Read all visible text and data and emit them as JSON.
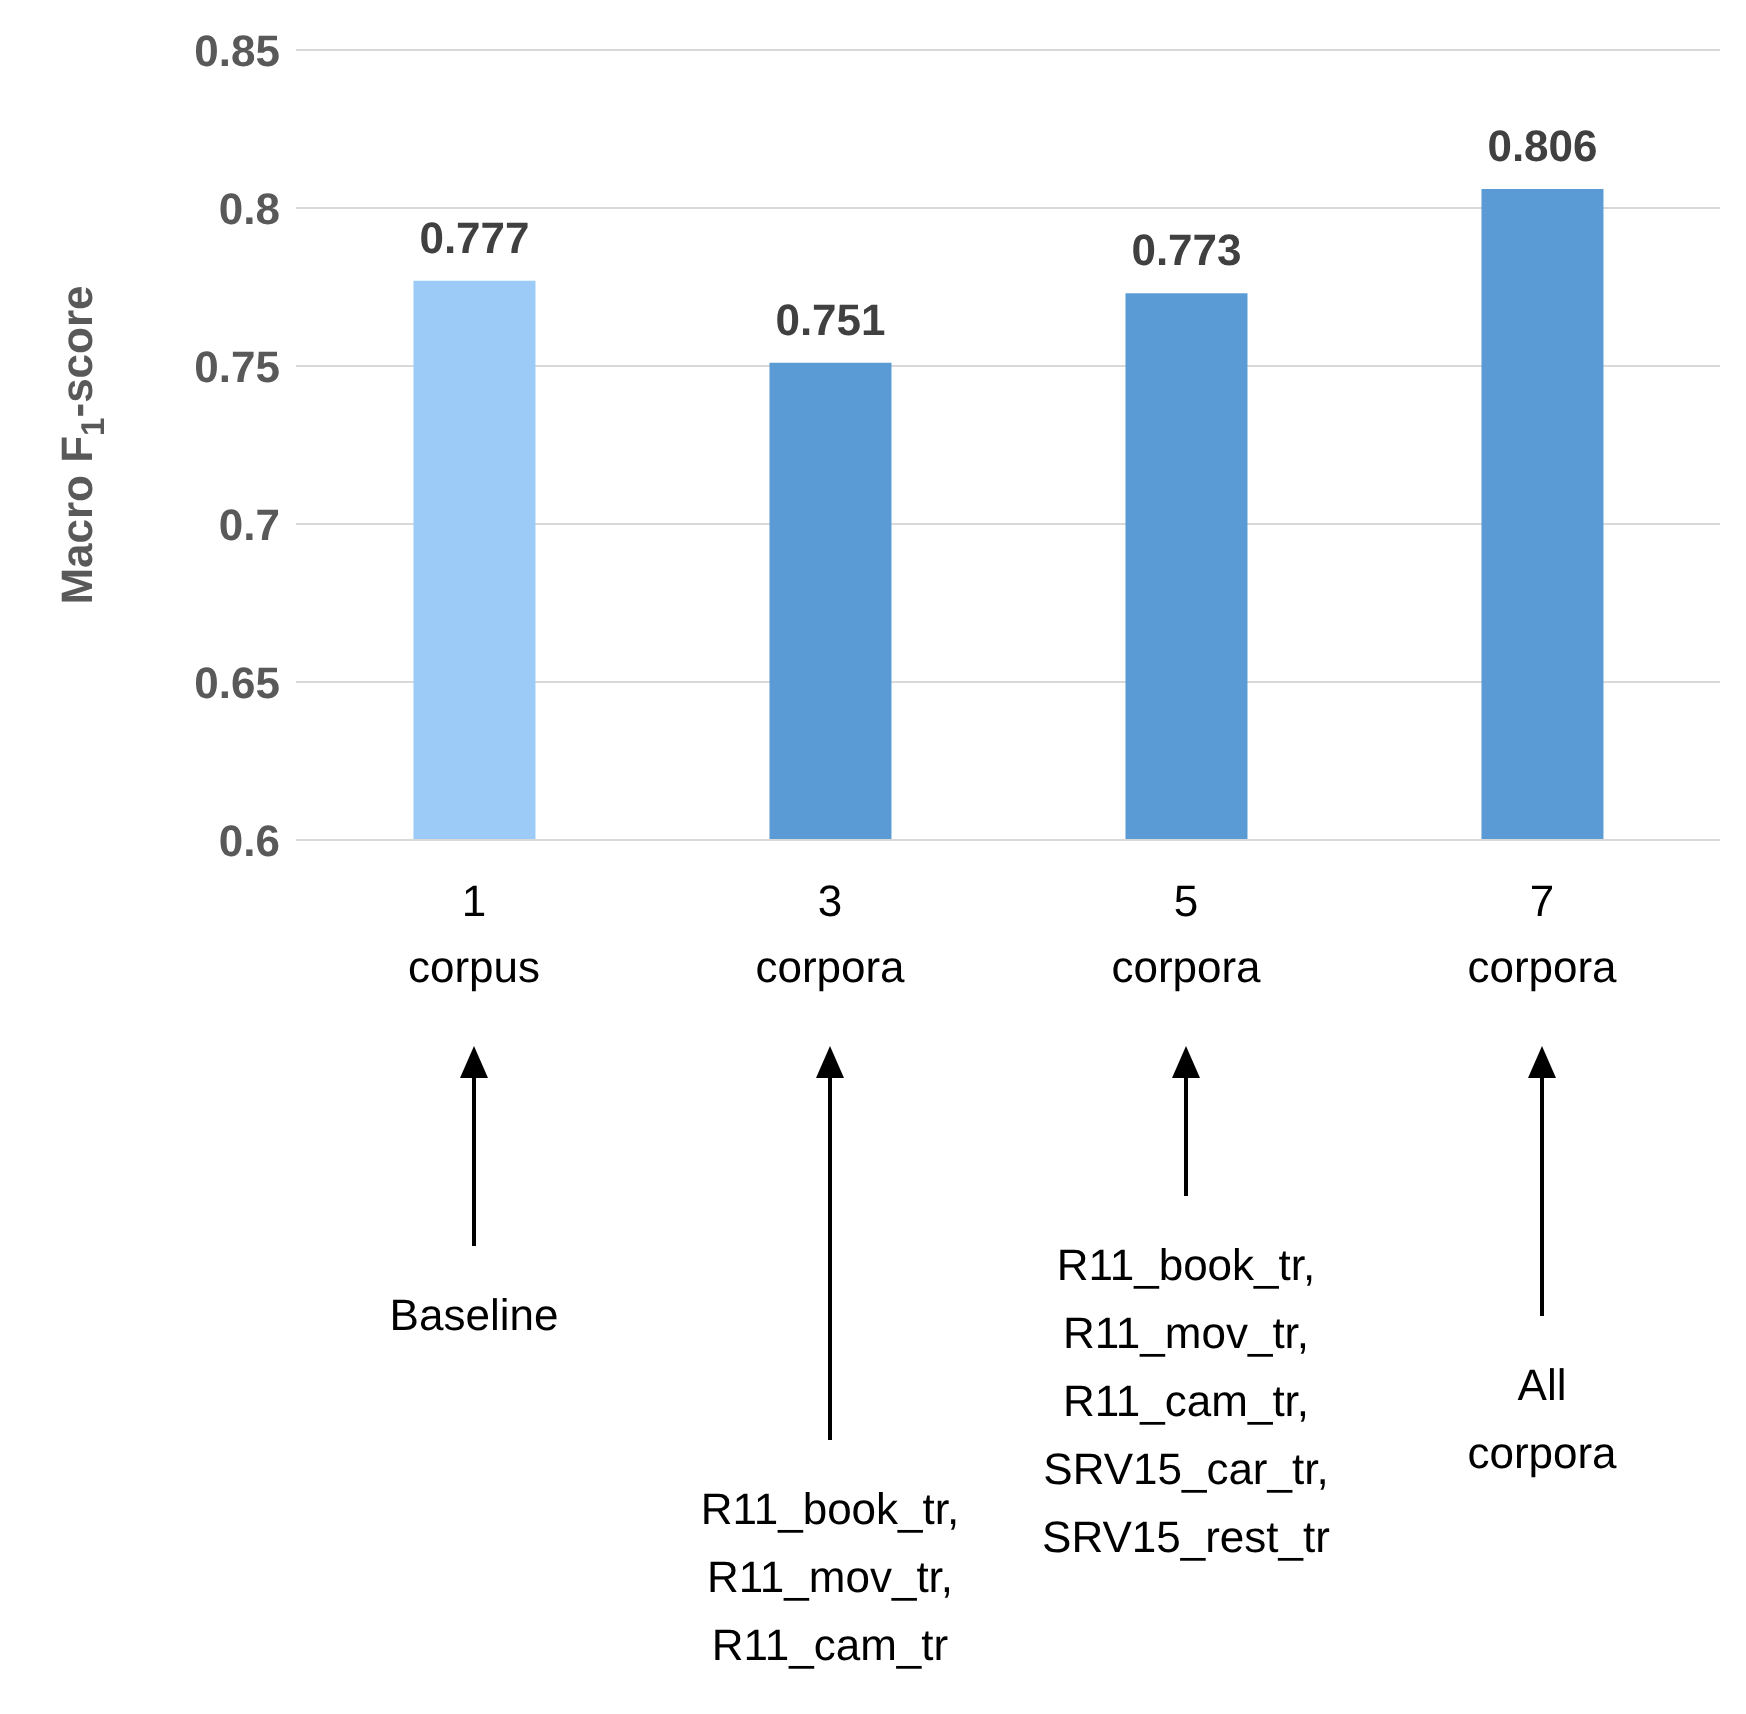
{
  "chart_data": {
    "type": "bar",
    "ylabel": "Macro F$_{1}$-score",
    "categories": [
      "1\ncorpus",
      "3\ncorpora",
      "5\ncorpora",
      "7\ncorpora"
    ],
    "values": [
      0.777,
      0.751,
      0.773,
      0.806
    ],
    "colors": [
      "#9dcbf7",
      "#5b9bd5",
      "#5b9bd5",
      "#5b9bd5"
    ],
    "ylim": [
      0.6,
      0.85
    ],
    "yticks": [
      0.6,
      0.65,
      0.7,
      0.75,
      0.8,
      0.85
    ],
    "grid": "y",
    "data_labels": true,
    "annotations": [
      "Baseline",
      "R11_book_tr,\nR11_mov_tr,\nR11_cam_tr",
      "R11_book_tr,\nR11_mov_tr,\nR11_cam_tr,\nSRV15_car_tr,\nSRV15_rest_tr",
      "All\ncorpora"
    ]
  }
}
